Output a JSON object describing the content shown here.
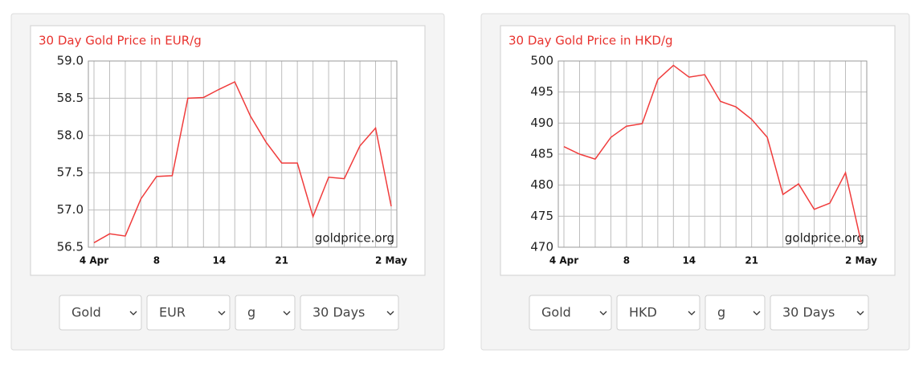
{
  "chart_data": [
    {
      "type": "line",
      "title": "30 Day Gold Price in EUR/g",
      "annotation": "goldprice.org",
      "categories": [
        "4 Apr",
        null,
        null,
        null,
        "8",
        null,
        null,
        null,
        "14",
        null,
        null,
        null,
        "21",
        null,
        null,
        null,
        null,
        null,
        null,
        "2 May"
      ],
      "series": [
        {
          "name": "EUR/g",
          "color": "#f03c3c",
          "values": [
            56.56,
            56.68,
            56.65,
            57.15,
            57.45,
            57.46,
            58.5,
            58.51,
            58.62,
            58.72,
            58.26,
            57.91,
            57.63,
            57.63,
            56.91,
            57.44,
            57.42,
            57.86,
            58.1,
            57.05
          ]
        }
      ],
      "ylim": [
        56.5,
        59.0
      ],
      "yticks": [
        56.5,
        {
          "value": 57.0,
          "label": "57.0"
        },
        57.5,
        {
          "value": 58.0,
          "label": "58.0"
        },
        58.5,
        {
          "value": 59.0,
          "label": "59.0"
        }
      ],
      "grid": true
    },
    {
      "type": "line",
      "title": "30 Day Gold Price in HKD/g",
      "annotation": "goldprice.org",
      "categories": [
        "4 Apr",
        null,
        null,
        null,
        "8",
        null,
        null,
        null,
        "14",
        null,
        null,
        null,
        "21",
        null,
        null,
        null,
        null,
        null,
        null,
        "2 May"
      ],
      "series": [
        {
          "name": "HKD/g",
          "color": "#f03c3c",
          "values": [
            486.2,
            485.0,
            484.2,
            487.7,
            489.5,
            489.9,
            497.0,
            499.3,
            497.4,
            497.8,
            493.5,
            492.6,
            490.6,
            487.7,
            478.5,
            480.2,
            476.1,
            477.1,
            482.0,
            470.8
          ]
        }
      ],
      "ylim": [
        470,
        500
      ],
      "yticks": [
        470,
        475,
        480,
        485,
        490,
        495,
        500
      ],
      "grid": true
    }
  ],
  "controls": [
    [
      "Gold",
      "EUR",
      "g",
      "30 Days"
    ],
    [
      "Gold",
      "HKD",
      "g",
      "30 Days"
    ]
  ]
}
